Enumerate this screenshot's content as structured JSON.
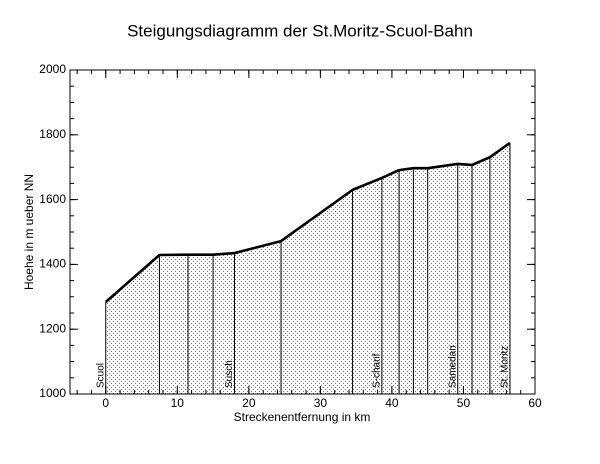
{
  "chart_data": {
    "type": "line",
    "title": "Steigungsdiagramm der St.Moritz-Scuol-Bahn",
    "x_label": "Streckenentfernung in km",
    "y_label": "Hoehe in m ueber NN",
    "x": [
      0,
      7.5,
      11.5,
      15,
      18,
      24.5,
      34.5,
      38.6,
      41,
      43,
      45,
      49.2,
      51.2,
      53.7,
      56.5
    ],
    "series": [
      {
        "name": "Hoehe",
        "color": "#000000",
        "values": [
          1284,
          1429,
          1430,
          1430,
          1435,
          1472,
          1630,
          1667,
          1691,
          1697,
          1697,
          1710,
          1707,
          1731,
          1775
        ]
      }
    ],
    "annotations": [
      {
        "text": "Scuol",
        "x": 0
      },
      {
        "text": "Susch",
        "x": 18
      },
      {
        "text": "S-chanf",
        "x": 38.6
      },
      {
        "text": "Samedan",
        "x": 49.2
      },
      {
        "text": "St. Moritz",
        "x": 56.5
      }
    ],
    "xlim": [
      -5,
      60
    ],
    "xticks": [
      0,
      10,
      20,
      30,
      40,
      50,
      60
    ],
    "ylim": [
      1000,
      2000
    ],
    "yticks": [
      1000,
      1200,
      1400,
      1600,
      1800,
      2000
    ],
    "fill": "dotted",
    "drop_lines": true
  }
}
